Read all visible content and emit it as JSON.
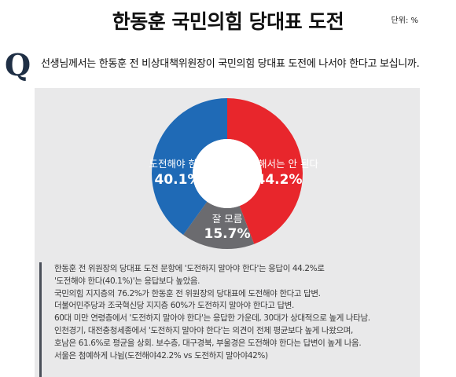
{
  "header": {
    "title": "한동훈 국민의힘 당대표 도전",
    "unit": "단위: %"
  },
  "question": {
    "mark": "Q",
    "text": "선생님께서는 한동훈 전 비상대책위원장이 국민의힘 당대표 도전에 나서야 한다고 보십니까."
  },
  "chart_data": {
    "type": "pie",
    "labels": [
      "도전해야 한다",
      "도전해서는 안 된다",
      "잘 모름"
    ],
    "values": [
      40.1,
      44.2,
      15.7
    ],
    "value_labels": [
      "40.1%",
      "44.2%",
      "15.7%"
    ],
    "colors": [
      "#1f6ab6",
      "#e8262c",
      "#6b6b6f"
    ]
  },
  "notes": [
    "한동훈 전 위원장의 당대표 도전 문항에 '도전하지 말아야 한다'는 응답이 44.2%로",
    "'도전해야 한다(40.1%)'는 응답보다 높았음.",
    "국민의힘 지지층의 76.2%가 한동훈 전 위원장의 당대표에 도전해야 한다고 답변.",
    "더불어민주당과 조국혁신당 지지층 60%가 도전하지 말아야 한다고 답변.",
    "60대 미만 연령층에서 '도전하지 말아야 한다'는 응답한 가운데, 30대가 상대적으로 높게 나타남.",
    "인천경기, 대전충청세종에서 '도전하지 말아야 한다'는 의견이 전체 평균보다 높게 나왔으며,",
    "호남은 61.6%로 평균을 상회. 보수층, 대구경북, 부울경은 도전해야 한다는 답변이 높게 나옴.",
    "서울은 첨예하게 나뉨(도전해야42.2% vs 도전하지 말아야42%)"
  ]
}
